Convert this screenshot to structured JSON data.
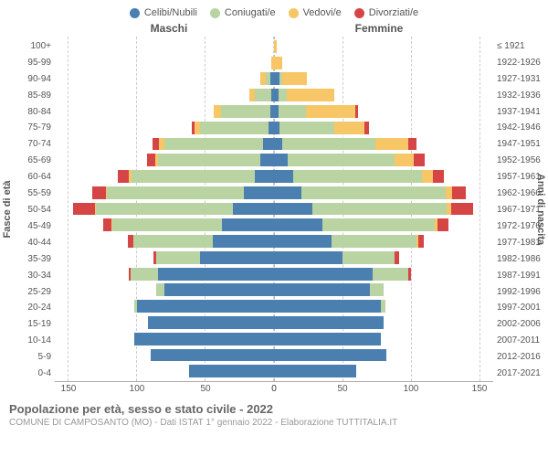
{
  "legend": [
    {
      "label": "Celibi/Nubili",
      "color": "#4a7fb0"
    },
    {
      "label": "Coniugati/e",
      "color": "#b9d4a2"
    },
    {
      "label": "Vedovi/e",
      "color": "#f6c667"
    },
    {
      "label": "Divorziati/e",
      "color": "#d64545"
    }
  ],
  "headers": {
    "male": "Maschi",
    "female": "Femmine"
  },
  "axis_titles": {
    "left": "Fasce di età",
    "right": "Anni di nascita"
  },
  "footer": {
    "title": "Popolazione per età, sesso e stato civile - 2022",
    "sub": "COMUNE DI CAMPOSANTO (MO) - Dati ISTAT 1° gennaio 2022 - Elaborazione TUTTITALIA.IT"
  },
  "x_ticks": [
    0,
    50,
    100,
    150
  ],
  "x_max": 160,
  "colors": {
    "single": "#4a7fb0",
    "married": "#b9d4a2",
    "widowed": "#f6c667",
    "divorced": "#d64545",
    "grid": "#cccccc",
    "bg": "#ffffff"
  },
  "rows": [
    {
      "age": "100+",
      "year": "≤ 1921",
      "m": [
        0,
        0,
        0,
        0
      ],
      "f": [
        0,
        0,
        2,
        0
      ]
    },
    {
      "age": "95-99",
      "year": "1922-1926",
      "m": [
        0,
        0,
        2,
        0
      ],
      "f": [
        0,
        0,
        6,
        0
      ]
    },
    {
      "age": "90-94",
      "year": "1927-1931",
      "m": [
        3,
        3,
        4,
        0
      ],
      "f": [
        4,
        2,
        18,
        0
      ]
    },
    {
      "age": "85-89",
      "year": "1932-1936",
      "m": [
        2,
        12,
        4,
        0
      ],
      "f": [
        3,
        6,
        35,
        0
      ]
    },
    {
      "age": "80-84",
      "year": "1937-1941",
      "m": [
        3,
        36,
        5,
        0
      ],
      "f": [
        3,
        20,
        36,
        2
      ]
    },
    {
      "age": "75-79",
      "year": "1942-1946",
      "m": [
        4,
        50,
        4,
        2
      ],
      "f": [
        4,
        40,
        22,
        3
      ]
    },
    {
      "age": "70-74",
      "year": "1947-1951",
      "m": [
        8,
        72,
        4,
        5
      ],
      "f": [
        6,
        68,
        24,
        6
      ]
    },
    {
      "age": "65-69",
      "year": "1952-1956",
      "m": [
        10,
        75,
        2,
        6
      ],
      "f": [
        10,
        78,
        14,
        8
      ]
    },
    {
      "age": "60-64",
      "year": "1957-1961",
      "m": [
        14,
        90,
        2,
        8
      ],
      "f": [
        14,
        94,
        8,
        8
      ]
    },
    {
      "age": "55-59",
      "year": "1962-1966",
      "m": [
        22,
        100,
        1,
        10
      ],
      "f": [
        20,
        105,
        5,
        10
      ]
    },
    {
      "age": "50-54",
      "year": "1967-1971",
      "m": [
        30,
        100,
        1,
        16
      ],
      "f": [
        28,
        98,
        3,
        16
      ]
    },
    {
      "age": "45-49",
      "year": "1972-1976",
      "m": [
        38,
        80,
        1,
        6
      ],
      "f": [
        35,
        82,
        2,
        8
      ]
    },
    {
      "age": "40-44",
      "year": "1977-1981",
      "m": [
        45,
        58,
        0,
        4
      ],
      "f": [
        42,
        62,
        1,
        4
      ]
    },
    {
      "age": "35-39",
      "year": "1982-1986",
      "m": [
        54,
        32,
        0,
        2
      ],
      "f": [
        50,
        38,
        0,
        3
      ]
    },
    {
      "age": "30-34",
      "year": "1987-1991",
      "m": [
        85,
        20,
        0,
        1
      ],
      "f": [
        72,
        26,
        0,
        2
      ]
    },
    {
      "age": "25-29",
      "year": "1992-1996",
      "m": [
        80,
        6,
        0,
        0
      ],
      "f": [
        70,
        10,
        0,
        0
      ]
    },
    {
      "age": "20-24",
      "year": "1997-2001",
      "m": [
        100,
        2,
        0,
        0
      ],
      "f": [
        78,
        3,
        0,
        0
      ]
    },
    {
      "age": "15-19",
      "year": "2002-2006",
      "m": [
        92,
        0,
        0,
        0
      ],
      "f": [
        80,
        0,
        0,
        0
      ]
    },
    {
      "age": "10-14",
      "year": "2007-2011",
      "m": [
        102,
        0,
        0,
        0
      ],
      "f": [
        78,
        0,
        0,
        0
      ]
    },
    {
      "age": "5-9",
      "year": "2012-2016",
      "m": [
        90,
        0,
        0,
        0
      ],
      "f": [
        82,
        0,
        0,
        0
      ]
    },
    {
      "age": "0-4",
      "year": "2017-2021",
      "m": [
        62,
        0,
        0,
        0
      ],
      "f": [
        60,
        0,
        0,
        0
      ]
    }
  ]
}
